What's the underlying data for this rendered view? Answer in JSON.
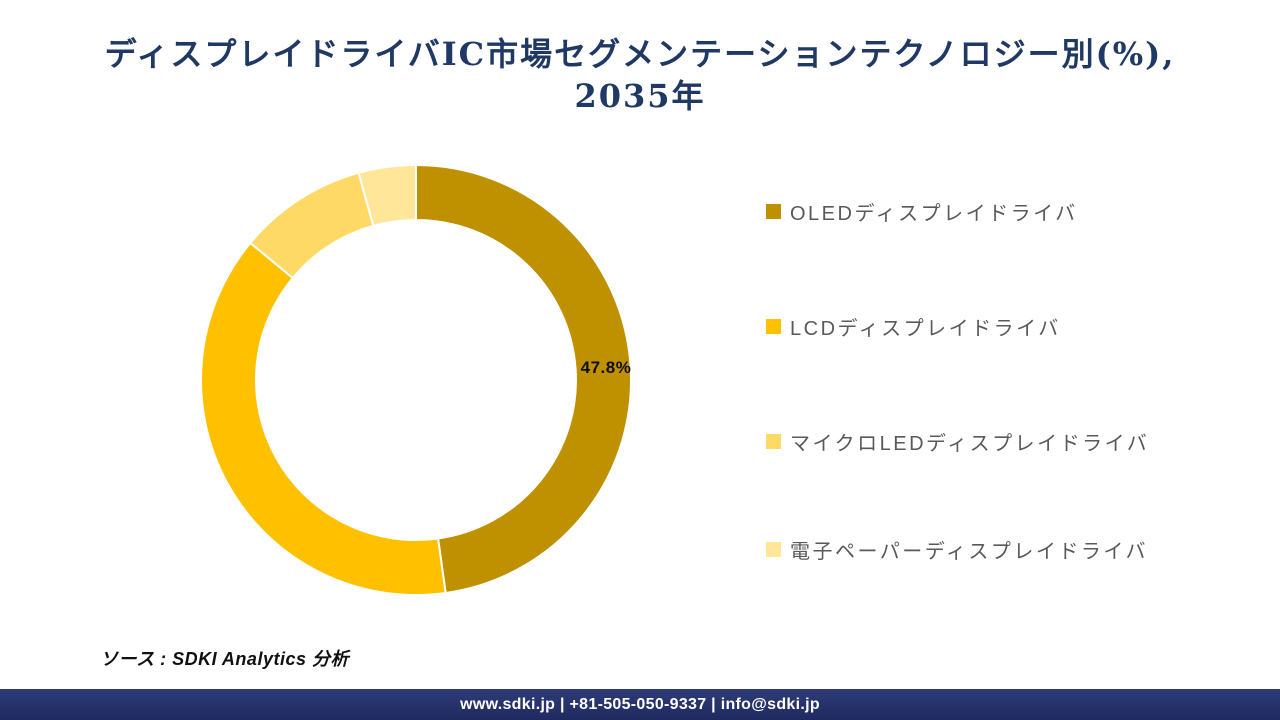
{
  "title": {
    "line1": "ディスプレイドライバIC市場セグメンテーションテクノロジー別(%),",
    "line2": "2035年",
    "color": "#1F3864"
  },
  "chart_data": {
    "type": "pie",
    "subtype": "donut",
    "title": "ディスプレイドライバIC市場セグメンテーションテクノロジー別(%), 2035年",
    "unit": "%",
    "start_angle_deg": 0,
    "direction": "clockwise",
    "legend_position": "right",
    "inner_radius_ratio": 0.745,
    "slices": [
      {
        "label": "OLEDディスプレイドライバ",
        "value": 47.8,
        "value_label": "47.8%",
        "color": "#BF9000",
        "show_label": true
      },
      {
        "label": "LCDディスプレイドライバ",
        "value": 38.2,
        "color": "#FFC000",
        "show_label": false
      },
      {
        "label": "マイクロLEDディスプレイドライバ",
        "value": 9.7,
        "color": "#FFD966",
        "show_label": false
      },
      {
        "label": "電子ペーパーディスプレイドライバ",
        "value": 4.3,
        "color": "#FFE699",
        "show_label": false
      }
    ],
    "note": "Only the first slice shows a printed data label (47.8%); remaining values estimated from arc angles."
  },
  "source": {
    "text": "ソース : SDKI Analytics 分析"
  },
  "footer": {
    "text": "www.sdki.jp | +81-505-050-9337 | info@sdki.jp",
    "background": "#253069"
  }
}
